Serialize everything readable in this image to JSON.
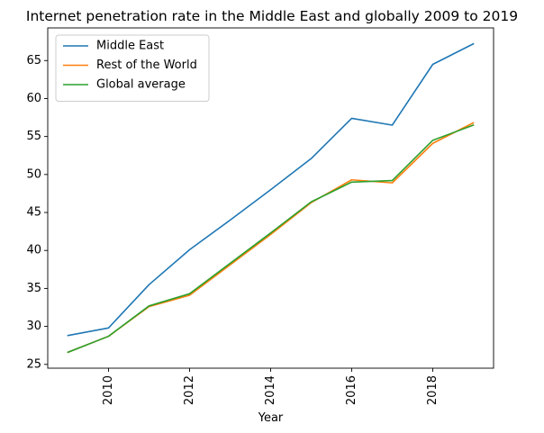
{
  "chart_data": {
    "type": "line",
    "title": "Internet penetration rate in the Middle East and globally 2009 to 2019",
    "xlabel": "Year",
    "ylabel": "",
    "xlim": [
      2008.5,
      2019.5
    ],
    "ylim": [
      24.5,
      69.3
    ],
    "x": [
      2009,
      2010,
      2011,
      2012,
      2013,
      2014,
      2015,
      2016,
      2017,
      2018,
      2019
    ],
    "xticks": [
      2010,
      2012,
      2014,
      2016,
      2018
    ],
    "yticks": [
      25,
      30,
      35,
      40,
      45,
      50,
      55,
      60,
      65
    ],
    "grid": false,
    "legend_position": "top-left",
    "series": [
      {
        "name": "Middle East",
        "color": "#1f77b4",
        "values": [
          28.8,
          29.8,
          35.5,
          40.1,
          44.0,
          48.0,
          52.1,
          57.4,
          56.5,
          64.5,
          67.2
        ]
      },
      {
        "name": "Rest of the World",
        "color": "#ff7f0e",
        "values": [
          26.6,
          28.7,
          32.6,
          34.1,
          38.1,
          42.1,
          46.3,
          49.3,
          48.9,
          54.1,
          56.8
        ]
      },
      {
        "name": "Global average",
        "color": "#2ca02c",
        "values": [
          26.6,
          28.7,
          32.7,
          34.3,
          38.3,
          42.3,
          46.4,
          49.0,
          49.2,
          54.5,
          56.5
        ]
      }
    ]
  }
}
